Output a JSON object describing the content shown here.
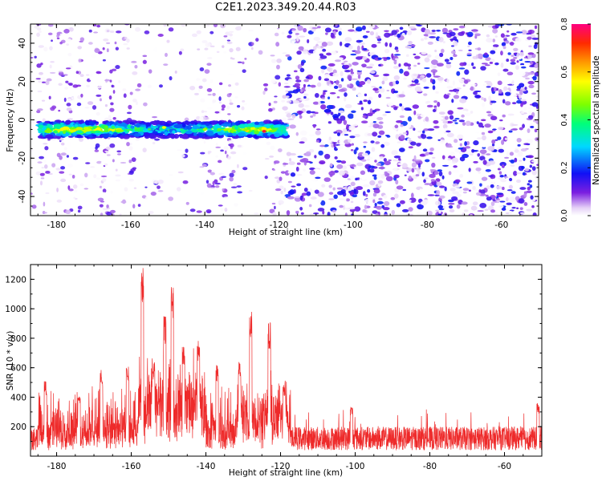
{
  "figure_title": "C2E1.2023.349.20.44.R03",
  "colors": {
    "signal_line": "#ee2a2a",
    "axis": "#000000",
    "background": "#ffffff"
  },
  "chart_data": [
    {
      "type": "heatmap",
      "title": "",
      "xlabel": "Height of straight line (km)",
      "ylabel": "Frequency (Hz)",
      "xlim": [
        -187,
        -50
      ],
      "ylim": [
        -50,
        50
      ],
      "x_ticks": [
        -180,
        -160,
        -140,
        -120,
        -100,
        -80,
        -60
      ],
      "y_ticks": [
        -40,
        -20,
        0,
        20,
        40
      ],
      "colorbar": {
        "label": "Normalized spectral amplitude",
        "range": [
          0.0,
          0.8
        ],
        "ticks": [
          "0.0",
          "0.2",
          "0.4",
          "0.6",
          "0.8"
        ],
        "colormap": "rainbow"
      },
      "features": [
        {
          "name": "signal band",
          "x_range": [
            -185,
            -118
          ],
          "frequency_center": -5,
          "frequency_half_width": 4,
          "peak_amplitude": 0.8
        },
        {
          "name": "noise (dense)",
          "x_range": [
            -118,
            -50
          ],
          "amplitude_range": [
            0.0,
            0.2
          ]
        },
        {
          "name": "noise (sparse)",
          "x_range": [
            -187,
            -118
          ],
          "amplitude_range": [
            0.0,
            0.15
          ]
        }
      ]
    },
    {
      "type": "line",
      "title": "",
      "xlabel": "Height of straight line (km)",
      "ylabel": "SNR (10 * v/v)",
      "xlim": [
        -187,
        -50
      ],
      "ylim": [
        0,
        1300
      ],
      "x_ticks": [
        -180,
        -160,
        -140,
        -120,
        -100,
        -80,
        -60
      ],
      "y_ticks": [
        200,
        400,
        600,
        800,
        1000,
        1200
      ],
      "series": [
        {
          "color": "#ee2a2a",
          "baseline": {
            "x_range": [
              -187,
              -50
            ],
            "typical_range": [
              40,
              200
            ]
          },
          "peaks": [
            {
              "x": -183,
              "y": 510
            },
            {
              "x": -174,
              "y": 440
            },
            {
              "x": -168,
              "y": 590
            },
            {
              "x": -161,
              "y": 640
            },
            {
              "x": -157,
              "y": 1290
            },
            {
              "x": -154,
              "y": 640
            },
            {
              "x": -151,
              "y": 950
            },
            {
              "x": -149,
              "y": 1160
            },
            {
              "x": -146,
              "y": 760
            },
            {
              "x": -142,
              "y": 800
            },
            {
              "x": -137,
              "y": 620
            },
            {
              "x": -131,
              "y": 660
            },
            {
              "x": -128,
              "y": 1000
            },
            {
              "x": -123,
              "y": 910
            },
            {
              "x": -119,
              "y": 500
            },
            {
              "x": -101,
              "y": 340
            },
            {
              "x": -51,
              "y": 360
            }
          ]
        }
      ]
    }
  ]
}
